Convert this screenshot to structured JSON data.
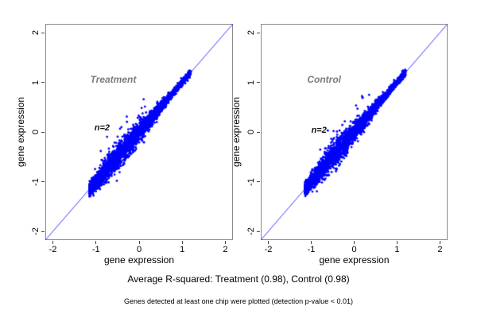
{
  "figure": {
    "caption_r_squared": "Average R-squared: Treatment (0.98), Control (0.98)",
    "caption_note": "Genes detected at least one chip were plotted (detection p-value < 0.01)"
  },
  "chart_data": {
    "type": "scatter",
    "layout": "two panels side by side, replicate-vs-replicate gene expression scatter with y=x identity line",
    "colors": {
      "points": "#0000FF",
      "identity_line": "#3b3bff",
      "panel_title": "#7b7b7b",
      "annotation": "#111111",
      "box": "#8a8a8a",
      "tick": "#444444",
      "text": "#000000"
    },
    "panels": [
      {
        "title": "Treatment",
        "n_label": "n=2",
        "r_squared": 0.98,
        "xlabel": "gene expression",
        "ylabel": "gene expression",
        "xticks": [
          -2,
          -1,
          0,
          1,
          2
        ],
        "yticks": [
          -2,
          -1,
          0,
          1,
          2
        ],
        "xlim": [
          -2.176,
          2.176
        ],
        "ylim": [
          -2.176,
          2.176
        ],
        "identity_line": {
          "intercept": 0,
          "slope": 1
        },
        "title_pos": [
          -0.6,
          1.05
        ],
        "n_pos": [
          -0.86,
          0.08
        ],
        "cloud": {
          "n": 3200,
          "seed": 21,
          "t_min": -1.15,
          "t_max": 1.2,
          "density_power": 1.45,
          "sd_base": 0.03,
          "sd_peak": 0.1,
          "sd_center": -0.35,
          "sd_width": 0.5,
          "outlier_up_prob": 0.013,
          "outlier_up_min": 0.15,
          "outlier_up_max": 0.6,
          "outlier_down_prob": 0.005,
          "outlier_down_min": 0.1,
          "outlier_down_max": 0.35
        }
      },
      {
        "title": "Control",
        "n_label": "n=2",
        "r_squared": 0.98,
        "xlabel": "gene expression",
        "ylabel": "gene expression",
        "xticks": [
          -2,
          -1,
          0,
          1,
          2
        ],
        "yticks": [
          -2,
          -1,
          0,
          1,
          2
        ],
        "xlim": [
          -2.176,
          2.176
        ],
        "ylim": [
          -2.176,
          2.176
        ],
        "identity_line": {
          "intercept": 0,
          "slope": 1
        },
        "title_pos": [
          -0.7,
          1.05
        ],
        "n_pos": [
          -0.82,
          0.03
        ],
        "cloud": {
          "n": 3200,
          "seed": 77,
          "t_min": -1.15,
          "t_max": 1.2,
          "density_power": 1.45,
          "sd_base": 0.03,
          "sd_peak": 0.095,
          "sd_center": -0.35,
          "sd_width": 0.5,
          "outlier_up_prob": 0.012,
          "outlier_up_min": 0.15,
          "outlier_up_max": 0.55,
          "outlier_down_prob": 0.005,
          "outlier_down_min": 0.1,
          "outlier_down_max": 0.35
        }
      }
    ]
  }
}
